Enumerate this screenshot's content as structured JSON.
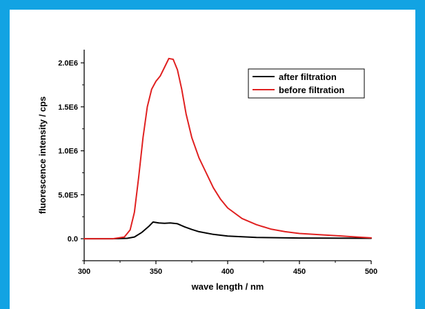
{
  "frame_color": "#12a3e3",
  "chart_data": {
    "type": "line",
    "xlabel": "wave length / nm",
    "ylabel": "fluorescence intensity / cps",
    "xlim": [
      300,
      500
    ],
    "ylim": [
      -250000,
      2150000
    ],
    "x_ticks": [
      300,
      350,
      400,
      450,
      500
    ],
    "x_tick_labels": [
      "300",
      "350",
      "400",
      "450",
      "500"
    ],
    "y_ticks": [
      0,
      500000,
      1000000,
      1500000,
      2000000
    ],
    "y_tick_labels": [
      "0.0",
      "5.0E5",
      "1.0E6",
      "1.5E6",
      "2.0E6"
    ],
    "legend_position": "top-right",
    "series": [
      {
        "name": "after filtration",
        "color": "#000000",
        "x": [
          300,
          320,
          330,
          335,
          340,
          345,
          348,
          352,
          356,
          360,
          365,
          370,
          375,
          380,
          390,
          400,
          420,
          450,
          500
        ],
        "y": [
          0,
          0,
          5000,
          20000,
          70000,
          140000,
          190000,
          180000,
          175000,
          180000,
          170000,
          135000,
          105000,
          80000,
          50000,
          30000,
          15000,
          8000,
          5000
        ]
      },
      {
        "name": "before filtration",
        "color": "#e02020",
        "x": [
          300,
          320,
          328,
          332,
          335,
          338,
          341,
          344,
          347,
          350,
          353,
          356,
          359,
          362,
          365,
          368,
          371,
          375,
          380,
          385,
          390,
          395,
          400,
          410,
          420,
          430,
          440,
          450,
          460,
          470,
          480,
          490,
          500
        ],
        "y": [
          0,
          0,
          20000,
          100000,
          300000,
          700000,
          1150000,
          1500000,
          1700000,
          1790000,
          1850000,
          1950000,
          2050000,
          2040000,
          1920000,
          1700000,
          1420000,
          1150000,
          920000,
          750000,
          580000,
          450000,
          350000,
          230000,
          160000,
          110000,
          80000,
          60000,
          50000,
          40000,
          30000,
          20000,
          10000
        ]
      }
    ]
  }
}
